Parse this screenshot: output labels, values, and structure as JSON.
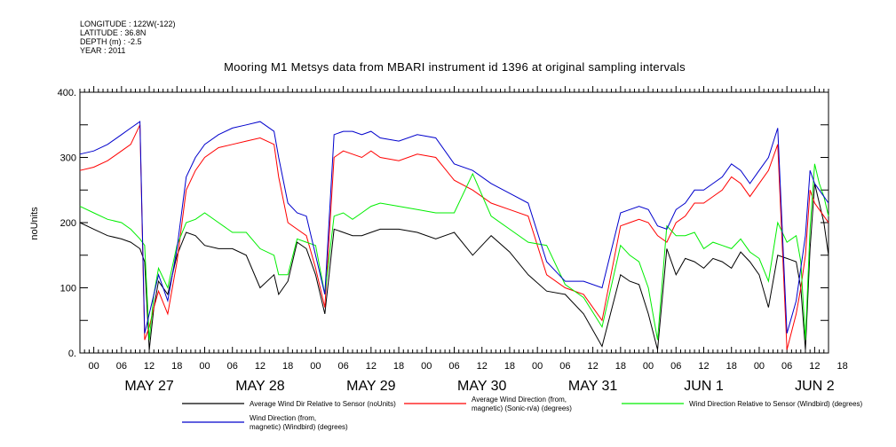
{
  "meta": {
    "longitude": "LONGITUDE : 122W(-122)",
    "latitude": "LATITUDE : 36.8N",
    "depth": "DEPTH (m) : -2.5",
    "year": "YEAR : 2011"
  },
  "chart_data": {
    "type": "line",
    "title": "Mooring M1 Metsys data from MBARI instrument id 1396 at original sampling intervals",
    "ylabel": "noUnits",
    "ylim": [
      0,
      400
    ],
    "yticks": [
      0,
      100,
      200,
      300,
      400
    ],
    "ytick_labels": [
      "0.",
      "100",
      "200",
      "300",
      "400."
    ],
    "xlim_hours": [
      -3,
      159
    ],
    "xtick_labels": [
      "00",
      "06",
      "12",
      "18",
      "00",
      "06",
      "12",
      "18",
      "00",
      "06",
      "12",
      "18",
      "00",
      "06",
      "12",
      "18",
      "00",
      "06",
      "12",
      "18",
      "00",
      "06",
      "12",
      "18",
      "00",
      "06",
      "12",
      "18"
    ],
    "day_labels": [
      "MAY 27",
      "MAY 28",
      "MAY 29",
      "MAY 30",
      "MAY 31",
      "JUN  1",
      "JUN  2"
    ],
    "x_note": "x values are hours after 2011-05-27 00:00",
    "series": [
      {
        "name": "Average Wind Dir Relative to Sensor (noUnits)",
        "color": "#000000",
        "x": [
          -3,
          0,
          3,
          6,
          8,
          10,
          11,
          12,
          13,
          14,
          16,
          18,
          20,
          22,
          24,
          27,
          30,
          33,
          36,
          39,
          40,
          42,
          44,
          46,
          48,
          50,
          52,
          54,
          56,
          58,
          60,
          62,
          66,
          70,
          74,
          78,
          82,
          86,
          90,
          94,
          98,
          102,
          106,
          110,
          114,
          116,
          118,
          120,
          122,
          124,
          126,
          128,
          130,
          132,
          134,
          136,
          138,
          140,
          142,
          144,
          146,
          148,
          150,
          152,
          153,
          154,
          155,
          156,
          157,
          158,
          159
        ],
        "y": [
          200,
          190,
          180,
          175,
          170,
          160,
          140,
          5,
          70,
          110,
          90,
          150,
          185,
          180,
          165,
          160,
          160,
          150,
          100,
          120,
          90,
          110,
          170,
          160,
          120,
          60,
          190,
          185,
          180,
          180,
          185,
          190,
          190,
          185,
          175,
          185,
          150,
          180,
          155,
          120,
          95,
          90,
          60,
          10,
          120,
          110,
          105,
          60,
          5,
          160,
          120,
          145,
          140,
          130,
          145,
          140,
          130,
          155,
          140,
          120,
          70,
          150,
          145,
          140,
          100,
          5,
          160,
          260,
          230,
          200,
          150
        ]
      },
      {
        "name": "Average Wind Direction (from, magnetic) (Sonic-n/a) (degrees)",
        "color": "#ff0000",
        "x": [
          -3,
          0,
          3,
          6,
          8,
          10,
          11,
          12,
          13,
          14,
          16,
          18,
          20,
          22,
          24,
          27,
          30,
          33,
          36,
          39,
          40,
          42,
          44,
          46,
          48,
          50,
          52,
          54,
          56,
          58,
          60,
          62,
          66,
          70,
          74,
          78,
          82,
          86,
          90,
          94,
          98,
          102,
          106,
          110,
          114,
          116,
          118,
          120,
          122,
          124,
          126,
          128,
          130,
          132,
          134,
          136,
          138,
          140,
          142,
          144,
          146,
          148,
          150,
          152,
          153,
          154,
          155,
          156,
          157,
          158,
          159
        ],
        "y": [
          280,
          285,
          295,
          310,
          320,
          350,
          20,
          40,
          70,
          95,
          60,
          140,
          250,
          280,
          300,
          315,
          320,
          325,
          330,
          320,
          270,
          200,
          190,
          180,
          130,
          70,
          300,
          310,
          305,
          300,
          310,
          300,
          295,
          305,
          300,
          265,
          250,
          230,
          220,
          210,
          120,
          100,
          90,
          50,
          195,
          200,
          205,
          200,
          180,
          170,
          200,
          210,
          230,
          230,
          240,
          250,
          270,
          260,
          240,
          260,
          280,
          320,
          5,
          60,
          100,
          150,
          250,
          230,
          220,
          210,
          200
        ]
      },
      {
        "name": "Wind Direction Relative to Sensor (Windbird) (degrees)",
        "color": "#00ee00",
        "x": [
          -3,
          0,
          3,
          6,
          8,
          10,
          11,
          12,
          13,
          14,
          16,
          18,
          20,
          22,
          24,
          27,
          30,
          33,
          36,
          39,
          40,
          42,
          44,
          46,
          48,
          50,
          52,
          54,
          56,
          58,
          60,
          62,
          66,
          70,
          74,
          78,
          82,
          86,
          90,
          94,
          98,
          102,
          106,
          110,
          114,
          116,
          118,
          120,
          122,
          124,
          126,
          128,
          130,
          132,
          134,
          136,
          138,
          140,
          142,
          144,
          146,
          148,
          150,
          152,
          153,
          154,
          155,
          156,
          157,
          158,
          159
        ],
        "y": [
          225,
          215,
          205,
          200,
          190,
          175,
          165,
          20,
          90,
          130,
          100,
          165,
          200,
          205,
          215,
          200,
          185,
          185,
          160,
          150,
          120,
          120,
          175,
          170,
          165,
          90,
          210,
          215,
          205,
          215,
          225,
          230,
          225,
          220,
          215,
          215,
          275,
          210,
          190,
          170,
          165,
          105,
          85,
          40,
          165,
          150,
          140,
          100,
          20,
          195,
          180,
          180,
          185,
          160,
          170,
          165,
          160,
          175,
          155,
          145,
          110,
          200,
          170,
          180,
          140,
          20,
          190,
          290,
          260,
          240,
          210
        ]
      },
      {
        "name": "Wind Direction (from, magnetic) (Windbird) (degrees)",
        "color": "#0000cc",
        "x": [
          -3,
          0,
          3,
          6,
          8,
          10,
          11,
          12,
          13,
          14,
          16,
          18,
          20,
          22,
          24,
          27,
          30,
          33,
          36,
          39,
          40,
          42,
          44,
          46,
          48,
          50,
          52,
          54,
          56,
          58,
          60,
          62,
          66,
          70,
          74,
          78,
          82,
          86,
          90,
          94,
          98,
          102,
          106,
          110,
          114,
          116,
          118,
          120,
          122,
          124,
          126,
          128,
          130,
          132,
          134,
          136,
          138,
          140,
          142,
          144,
          146,
          148,
          150,
          152,
          153,
          154,
          155,
          156,
          157,
          158,
          159
        ],
        "y": [
          305,
          310,
          320,
          335,
          345,
          355,
          30,
          60,
          90,
          120,
          80,
          160,
          270,
          300,
          320,
          335,
          345,
          350,
          355,
          340,
          300,
          230,
          215,
          210,
          150,
          90,
          335,
          340,
          340,
          335,
          340,
          330,
          325,
          335,
          330,
          290,
          280,
          260,
          245,
          230,
          140,
          110,
          110,
          100,
          215,
          220,
          225,
          220,
          195,
          190,
          220,
          230,
          250,
          250,
          260,
          270,
          290,
          280,
          260,
          280,
          300,
          345,
          30,
          80,
          130,
          180,
          280,
          260,
          250,
          240,
          230
        ]
      }
    ],
    "legend": [
      {
        "line1": "Average Wind Dir Relative to Sensor (noUnits)",
        "line2": "",
        "color": "#000000"
      },
      {
        "line1": "Average Wind Direction (from,",
        "line2": "magnetic) (Sonic-n/a) (degrees)",
        "color": "#ff0000"
      },
      {
        "line1": "Wind Direction Relative to Sensor (Windbird) (degrees)",
        "line2": "",
        "color": "#00ee00"
      },
      {
        "line1": "Wind Direction (from,",
        "line2": "magnetic) (Windbird) (degrees)",
        "color": "#0000cc"
      }
    ],
    "legend_placement": "bottom",
    "grid": false
  }
}
